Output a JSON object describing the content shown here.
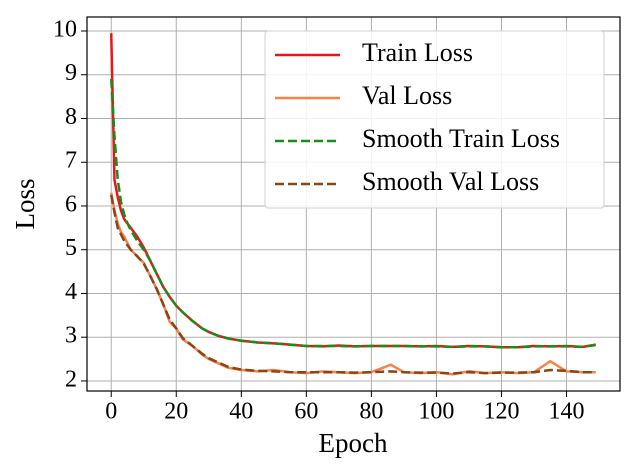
{
  "chart_data": {
    "type": "line",
    "xlabel": "Epoch",
    "ylabel": "Loss",
    "x": [
      0,
      1,
      2,
      3,
      4,
      5,
      6,
      8,
      10,
      12,
      14,
      16,
      18,
      20,
      22,
      25,
      28,
      30,
      33,
      36,
      40,
      45,
      50,
      55,
      60,
      65,
      70,
      75,
      80,
      86,
      90,
      95,
      100,
      105,
      110,
      115,
      120,
      125,
      130,
      135,
      140,
      145,
      149
    ],
    "series": [
      {
        "name": "Train Loss",
        "color": "#e8161b",
        "linestyle": "solid",
        "values": [
          9.95,
          6.6,
          6.2,
          5.9,
          5.7,
          5.6,
          5.5,
          5.3,
          5.05,
          4.75,
          4.45,
          4.15,
          3.92,
          3.72,
          3.57,
          3.37,
          3.2,
          3.12,
          3.03,
          2.97,
          2.92,
          2.88,
          2.86,
          2.83,
          2.8,
          2.79,
          2.81,
          2.79,
          2.8,
          2.8,
          2.8,
          2.79,
          2.8,
          2.78,
          2.8,
          2.79,
          2.77,
          2.77,
          2.8,
          2.79,
          2.8,
          2.78,
          2.83
        ]
      },
      {
        "name": "Val Loss",
        "color": "#f4834d",
        "linestyle": "solid",
        "values": [
          6.3,
          5.9,
          5.6,
          5.4,
          5.3,
          5.15,
          5.0,
          4.85,
          4.7,
          4.4,
          4.1,
          3.75,
          3.35,
          3.2,
          2.95,
          2.8,
          2.6,
          2.5,
          2.4,
          2.3,
          2.25,
          2.22,
          2.25,
          2.2,
          2.18,
          2.22,
          2.2,
          2.18,
          2.2,
          2.37,
          2.2,
          2.18,
          2.2,
          2.15,
          2.22,
          2.18,
          2.2,
          2.18,
          2.2,
          2.45,
          2.22,
          2.2,
          2.2
        ]
      },
      {
        "name": "Smooth Train Loss",
        "color": "#1a8c1a",
        "linestyle": "dashed",
        "values": [
          8.9,
          7.6,
          6.6,
          6.1,
          5.8,
          5.6,
          5.45,
          5.2,
          5.0,
          4.75,
          4.45,
          4.15,
          3.92,
          3.72,
          3.57,
          3.37,
          3.2,
          3.12,
          3.03,
          2.97,
          2.92,
          2.88,
          2.86,
          2.83,
          2.8,
          2.8,
          2.8,
          2.79,
          2.8,
          2.8,
          2.8,
          2.79,
          2.79,
          2.78,
          2.79,
          2.79,
          2.77,
          2.77,
          2.79,
          2.79,
          2.79,
          2.78,
          2.82
        ]
      },
      {
        "name": "Smooth Val Loss",
        "color": "#8b4513",
        "linestyle": "dashed",
        "values": [
          6.25,
          5.85,
          5.5,
          5.35,
          5.2,
          5.1,
          5.0,
          4.85,
          4.68,
          4.4,
          4.1,
          3.75,
          3.4,
          3.2,
          2.98,
          2.8,
          2.62,
          2.52,
          2.42,
          2.32,
          2.26,
          2.23,
          2.22,
          2.2,
          2.2,
          2.2,
          2.2,
          2.19,
          2.2,
          2.22,
          2.2,
          2.19,
          2.19,
          2.17,
          2.2,
          2.18,
          2.19,
          2.19,
          2.2,
          2.25,
          2.23,
          2.2,
          2.2
        ]
      }
    ],
    "xlim": [
      -7.45,
      156.45
    ],
    "xticks": [
      0,
      20,
      40,
      60,
      80,
      100,
      120,
      140
    ],
    "ylim": [
      1.77,
      10.32
    ],
    "yticks": [
      2,
      3,
      4,
      5,
      6,
      7,
      8,
      9,
      10
    ],
    "grid": true,
    "legend": "upper right"
  }
}
